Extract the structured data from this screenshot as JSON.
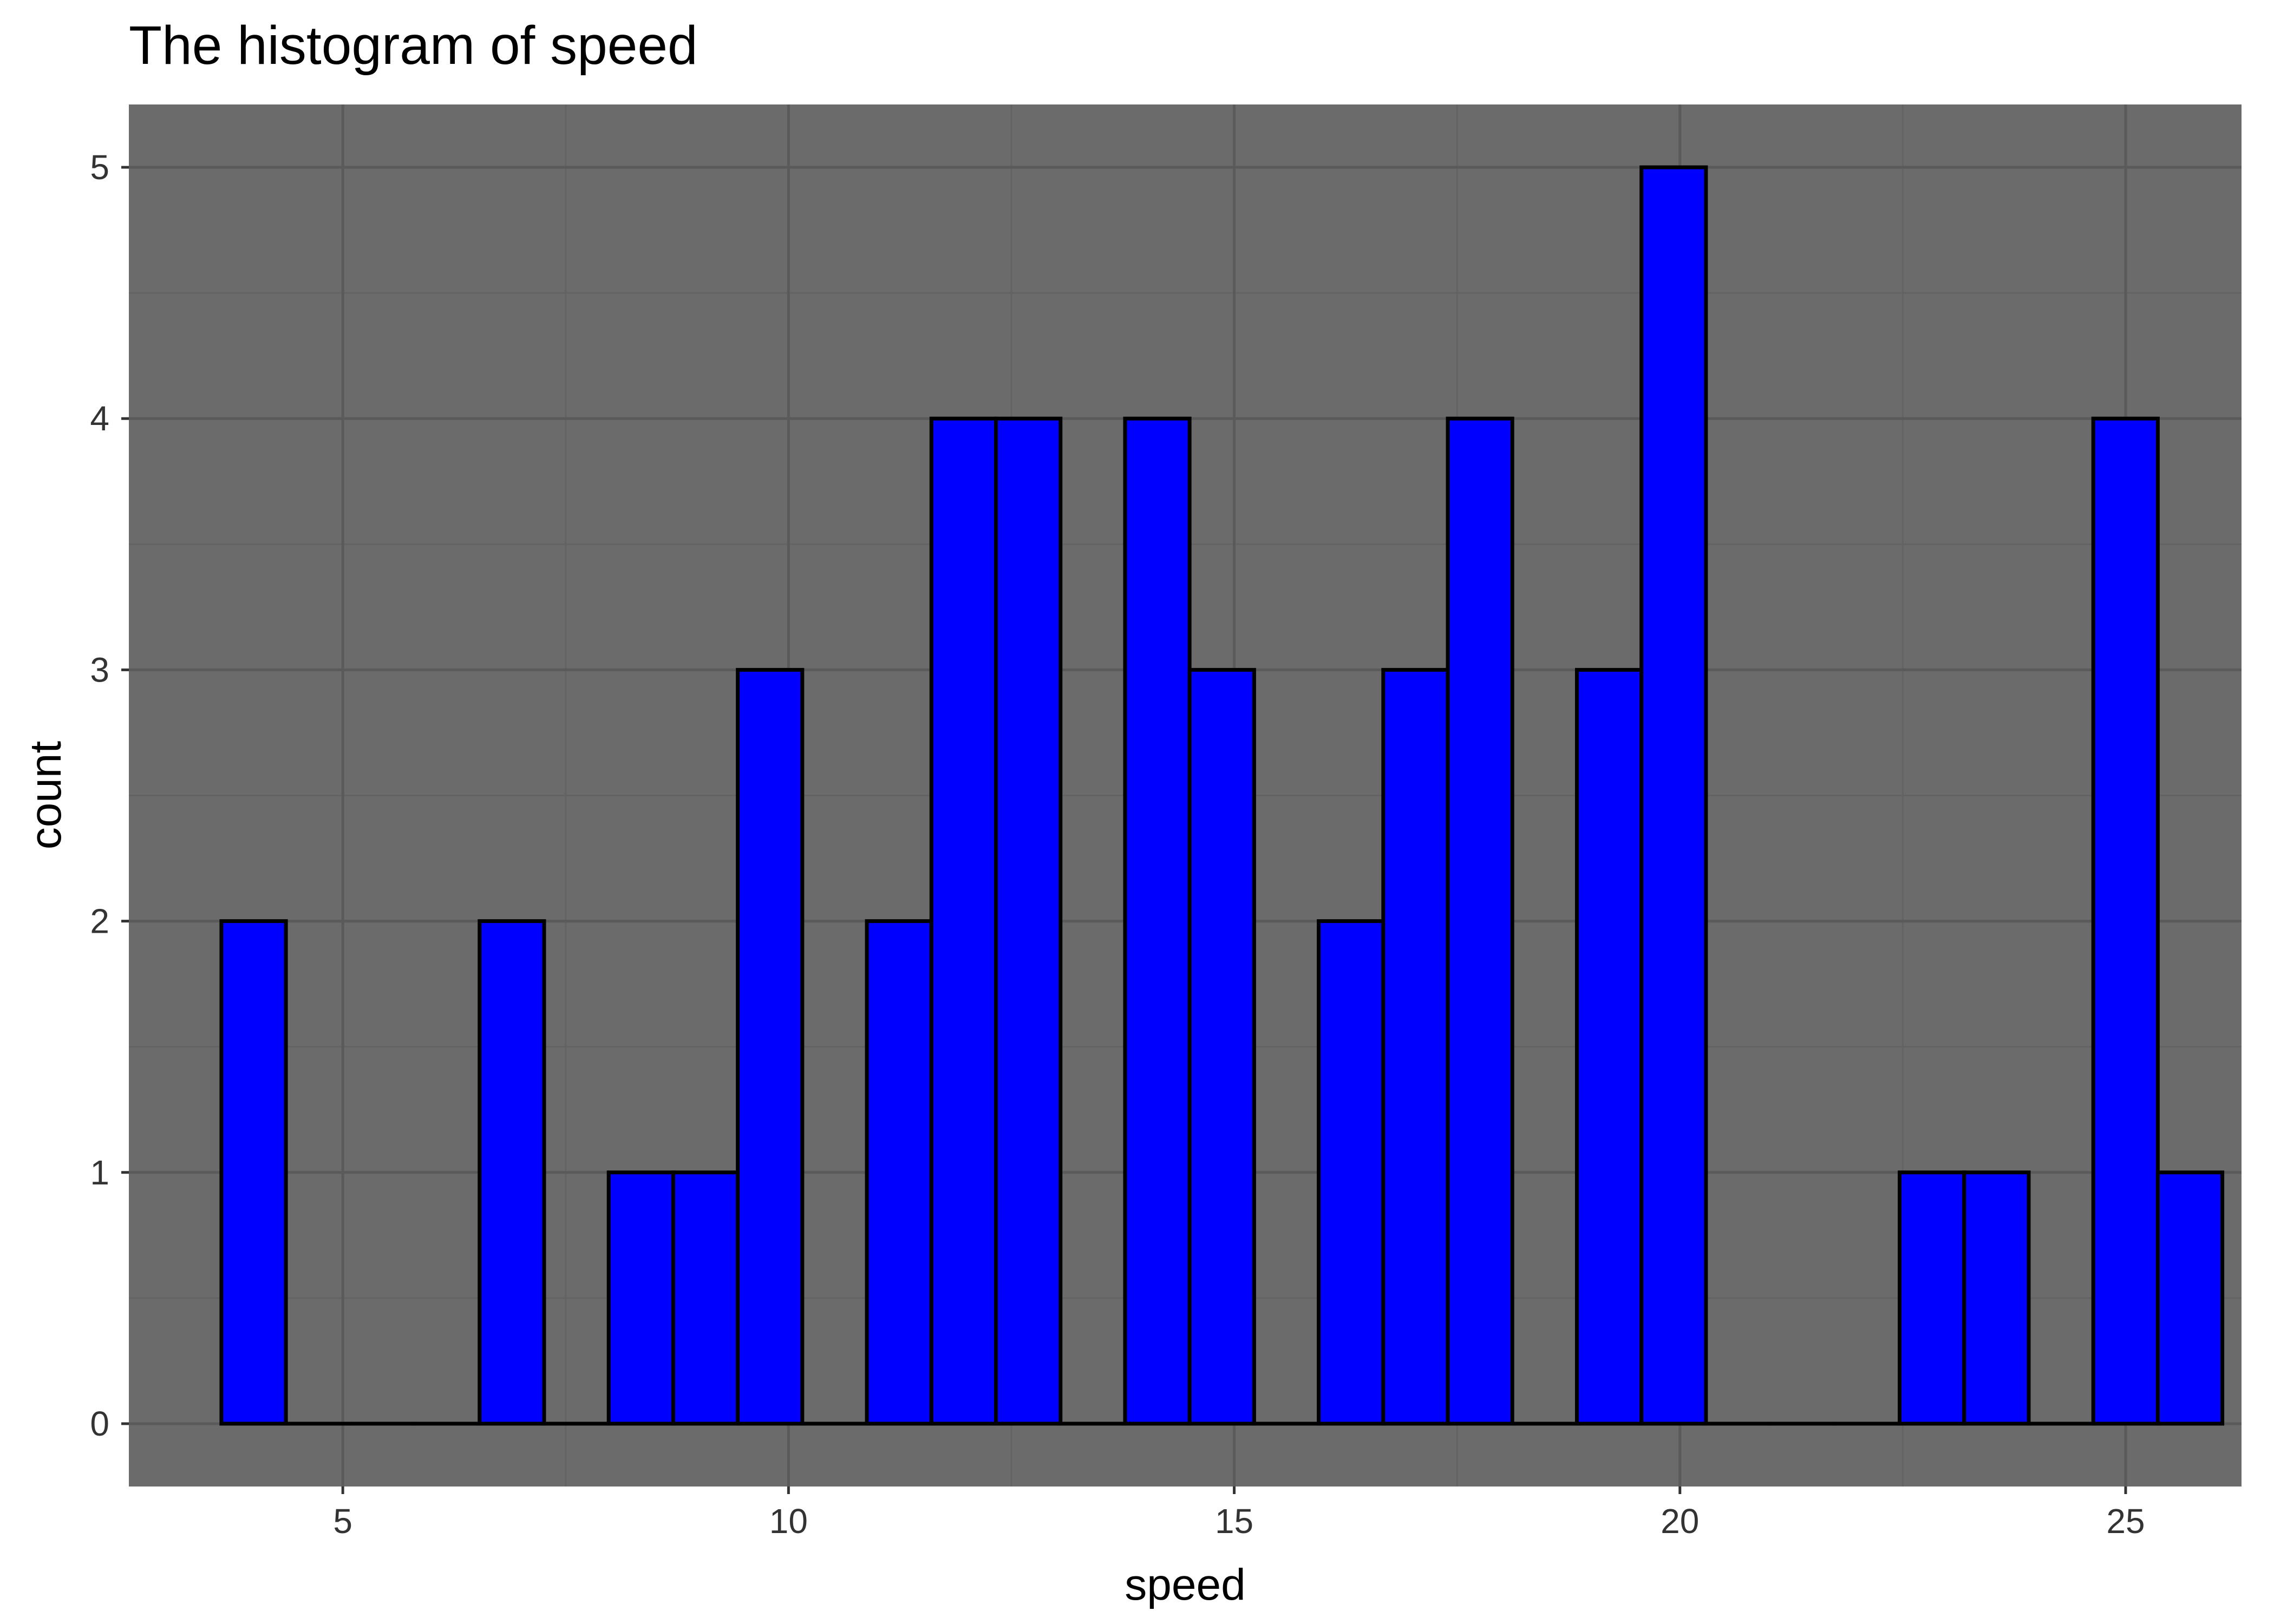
{
  "chart_data": {
    "type": "histogram",
    "title": "The histogram of speed",
    "xlabel": "speed",
    "ylabel": "count",
    "bin_width": 0.7241,
    "bin_start": 3.638,
    "counts": [
      2,
      0,
      0,
      0,
      2,
      0,
      1,
      1,
      3,
      0,
      2,
      4,
      4,
      0,
      4,
      3,
      0,
      2,
      3,
      4,
      0,
      3,
      5,
      0,
      0,
      0,
      1,
      1,
      0,
      4,
      1
    ],
    "xlim": [
      2.6,
      26.3
    ],
    "ylim": [
      -0.25,
      5.25
    ],
    "x_ticks": [
      5,
      10,
      15,
      20,
      25
    ],
    "y_ticks": [
      0,
      1,
      2,
      3,
      4,
      5
    ],
    "colors": {
      "panel_background": "#6b6b6b",
      "grid_major": "#5a5a5a",
      "grid_minor": "#636363",
      "bar_fill": "#0000ff",
      "bar_outline": "#000000"
    },
    "grid": true,
    "legend": "none"
  }
}
